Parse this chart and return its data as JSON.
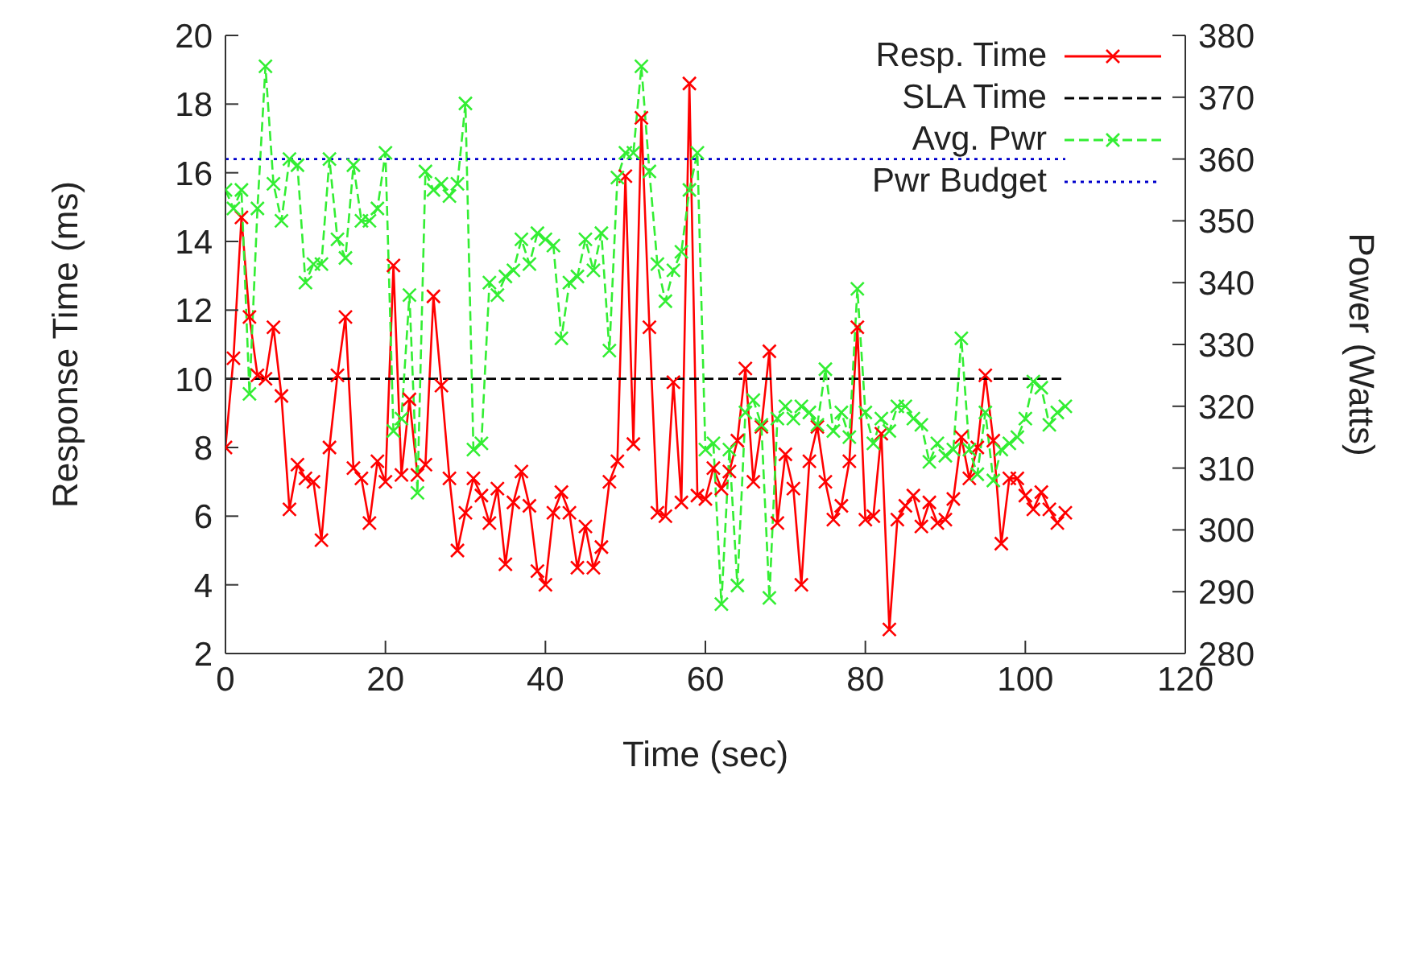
{
  "chart_data": {
    "type": "line",
    "xlabel": "Time (sec)",
    "ylabel": "Response Time (ms)",
    "y2label": "Power (Watts)",
    "xlim": [
      0,
      120
    ],
    "xticks": [
      0,
      20,
      40,
      60,
      80,
      100,
      120
    ],
    "ylim": [
      2,
      20
    ],
    "yticks": [
      2,
      4,
      6,
      8,
      10,
      12,
      14,
      16,
      18,
      20
    ],
    "y2lim": [
      280,
      380
    ],
    "y2ticks": [
      280,
      290,
      300,
      310,
      320,
      330,
      340,
      350,
      360,
      370,
      380
    ],
    "grid": false,
    "legend": "top right",
    "x": [
      0,
      1,
      2,
      3,
      4,
      5,
      6,
      7,
      8,
      9,
      10,
      11,
      12,
      13,
      14,
      15,
      16,
      17,
      18,
      19,
      20,
      21,
      22,
      23,
      24,
      25,
      26,
      27,
      28,
      29,
      30,
      31,
      32,
      33,
      34,
      35,
      36,
      37,
      38,
      39,
      40,
      41,
      42,
      43,
      44,
      45,
      46,
      47,
      48,
      49,
      50,
      51,
      52,
      53,
      54,
      55,
      56,
      57,
      58,
      59,
      60,
      61,
      62,
      63,
      64,
      65,
      66,
      67,
      68,
      69,
      70,
      71,
      72,
      73,
      74,
      75,
      76,
      77,
      78,
      79,
      80,
      81,
      82,
      83,
      84,
      85,
      86,
      87,
      88,
      89,
      90,
      91,
      92,
      93,
      94,
      95,
      96,
      97,
      98,
      99,
      100,
      101,
      102,
      103,
      104,
      105
    ],
    "series": [
      {
        "name": "Resp. Time",
        "color": "#ff0000",
        "marker": "cross",
        "line_style": "solid",
        "values": [
          8.0,
          10.6,
          14.7,
          11.8,
          10.1,
          10.0,
          11.5,
          9.5,
          6.2,
          7.5,
          7.1,
          7.0,
          5.3,
          8.0,
          10.1,
          11.8,
          7.4,
          7.1,
          5.8,
          7.6,
          7.0,
          13.3,
          7.2,
          9.4,
          7.2,
          7.5,
          12.4,
          9.8,
          7.1,
          5.0,
          6.1,
          7.1,
          6.6,
          5.8,
          6.8,
          4.6,
          6.4,
          7.3,
          6.3,
          4.4,
          4.0,
          6.1,
          6.7,
          6.1,
          4.5,
          5.7,
          4.5,
          5.1,
          7.0,
          7.6,
          15.9,
          8.1,
          17.6,
          11.5,
          6.1,
          6.0,
          9.9,
          6.4,
          18.6,
          6.6,
          6.5,
          7.4,
          6.8,
          7.3,
          8.2,
          10.3,
          7.0,
          8.6,
          10.8,
          5.8,
          7.8,
          6.8,
          4.0,
          7.6,
          8.6,
          7.0,
          5.9,
          6.3,
          7.6,
          11.5,
          5.9,
          6.0,
          8.4,
          2.7,
          5.9,
          6.3,
          6.6,
          5.7,
          6.4,
          5.8,
          5.9,
          6.5,
          8.3,
          7.1,
          8.0,
          10.1,
          8.2,
          5.2,
          7.1,
          7.1,
          6.6,
          6.2,
          6.7,
          6.2,
          5.8,
          6.1
        ]
      },
      {
        "name": "SLA Time",
        "color": "#000000",
        "marker": "none",
        "line_style": "dashed",
        "values": [
          10,
          10,
          10,
          10,
          10,
          10,
          10,
          10,
          10,
          10,
          10,
          10,
          10,
          10,
          10,
          10,
          10,
          10,
          10,
          10,
          10,
          10,
          10,
          10,
          10,
          10,
          10,
          10,
          10,
          10,
          10,
          10,
          10,
          10,
          10,
          10,
          10,
          10,
          10,
          10,
          10,
          10,
          10,
          10,
          10,
          10,
          10,
          10,
          10,
          10,
          10,
          10,
          10,
          10,
          10,
          10,
          10,
          10,
          10,
          10,
          10,
          10,
          10,
          10,
          10,
          10,
          10,
          10,
          10,
          10,
          10,
          10,
          10,
          10,
          10,
          10,
          10,
          10,
          10,
          10,
          10,
          10,
          10,
          10,
          10,
          10,
          10,
          10,
          10,
          10,
          10,
          10,
          10,
          10,
          10,
          10,
          10,
          10,
          10,
          10,
          10,
          10,
          10,
          10,
          10,
          10
        ]
      },
      {
        "name": "Avg. Pwr",
        "color": "#33ee33",
        "marker": "cross",
        "line_style": "dashed",
        "axis": "y2",
        "values": [
          355,
          352,
          355,
          322,
          352,
          375,
          356,
          350,
          360,
          359,
          340,
          343,
          343,
          360,
          347,
          344,
          359,
          350,
          350,
          352,
          361,
          316,
          318,
          338,
          306,
          358,
          355,
          356,
          354,
          356,
          369,
          313,
          314,
          340,
          338,
          341,
          342,
          347,
          343,
          348,
          347,
          346,
          331,
          340,
          341,
          347,
          342,
          348,
          329,
          357,
          361,
          361,
          375,
          358,
          343,
          337,
          342,
          345,
          355,
          361,
          313,
          314,
          288,
          313,
          291,
          319,
          321,
          317,
          289,
          318,
          320,
          318,
          320,
          319,
          317,
          326,
          316,
          319,
          315,
          339,
          319,
          314,
          318,
          316,
          320,
          320,
          318,
          317,
          311,
          314,
          312,
          313,
          331,
          313,
          309,
          319,
          308,
          313,
          314,
          315,
          318,
          324,
          323,
          317,
          319,
          320
        ]
      },
      {
        "name": "Pwr Budget",
        "color": "#0000cc",
        "marker": "none",
        "line_style": "dotted",
        "axis": "y2",
        "values": [
          360,
          360,
          360,
          360,
          360,
          360,
          360,
          360,
          360,
          360,
          360,
          360,
          360,
          360,
          360,
          360,
          360,
          360,
          360,
          360,
          360,
          360,
          360,
          360,
          360,
          360,
          360,
          360,
          360,
          360,
          360,
          360,
          360,
          360,
          360,
          360,
          360,
          360,
          360,
          360,
          360,
          360,
          360,
          360,
          360,
          360,
          360,
          360,
          360,
          360,
          360,
          360,
          360,
          360,
          360,
          360,
          360,
          360,
          360,
          360,
          360,
          360,
          360,
          360,
          360,
          360,
          360,
          360,
          360,
          360,
          360,
          360,
          360,
          360,
          360,
          360,
          360,
          360,
          360,
          360,
          360,
          360,
          360,
          360,
          360,
          360,
          360,
          360,
          360,
          360,
          360,
          360,
          360,
          360,
          360,
          360,
          360,
          360,
          360,
          360,
          360,
          360,
          360,
          360,
          360,
          360
        ]
      }
    ]
  }
}
